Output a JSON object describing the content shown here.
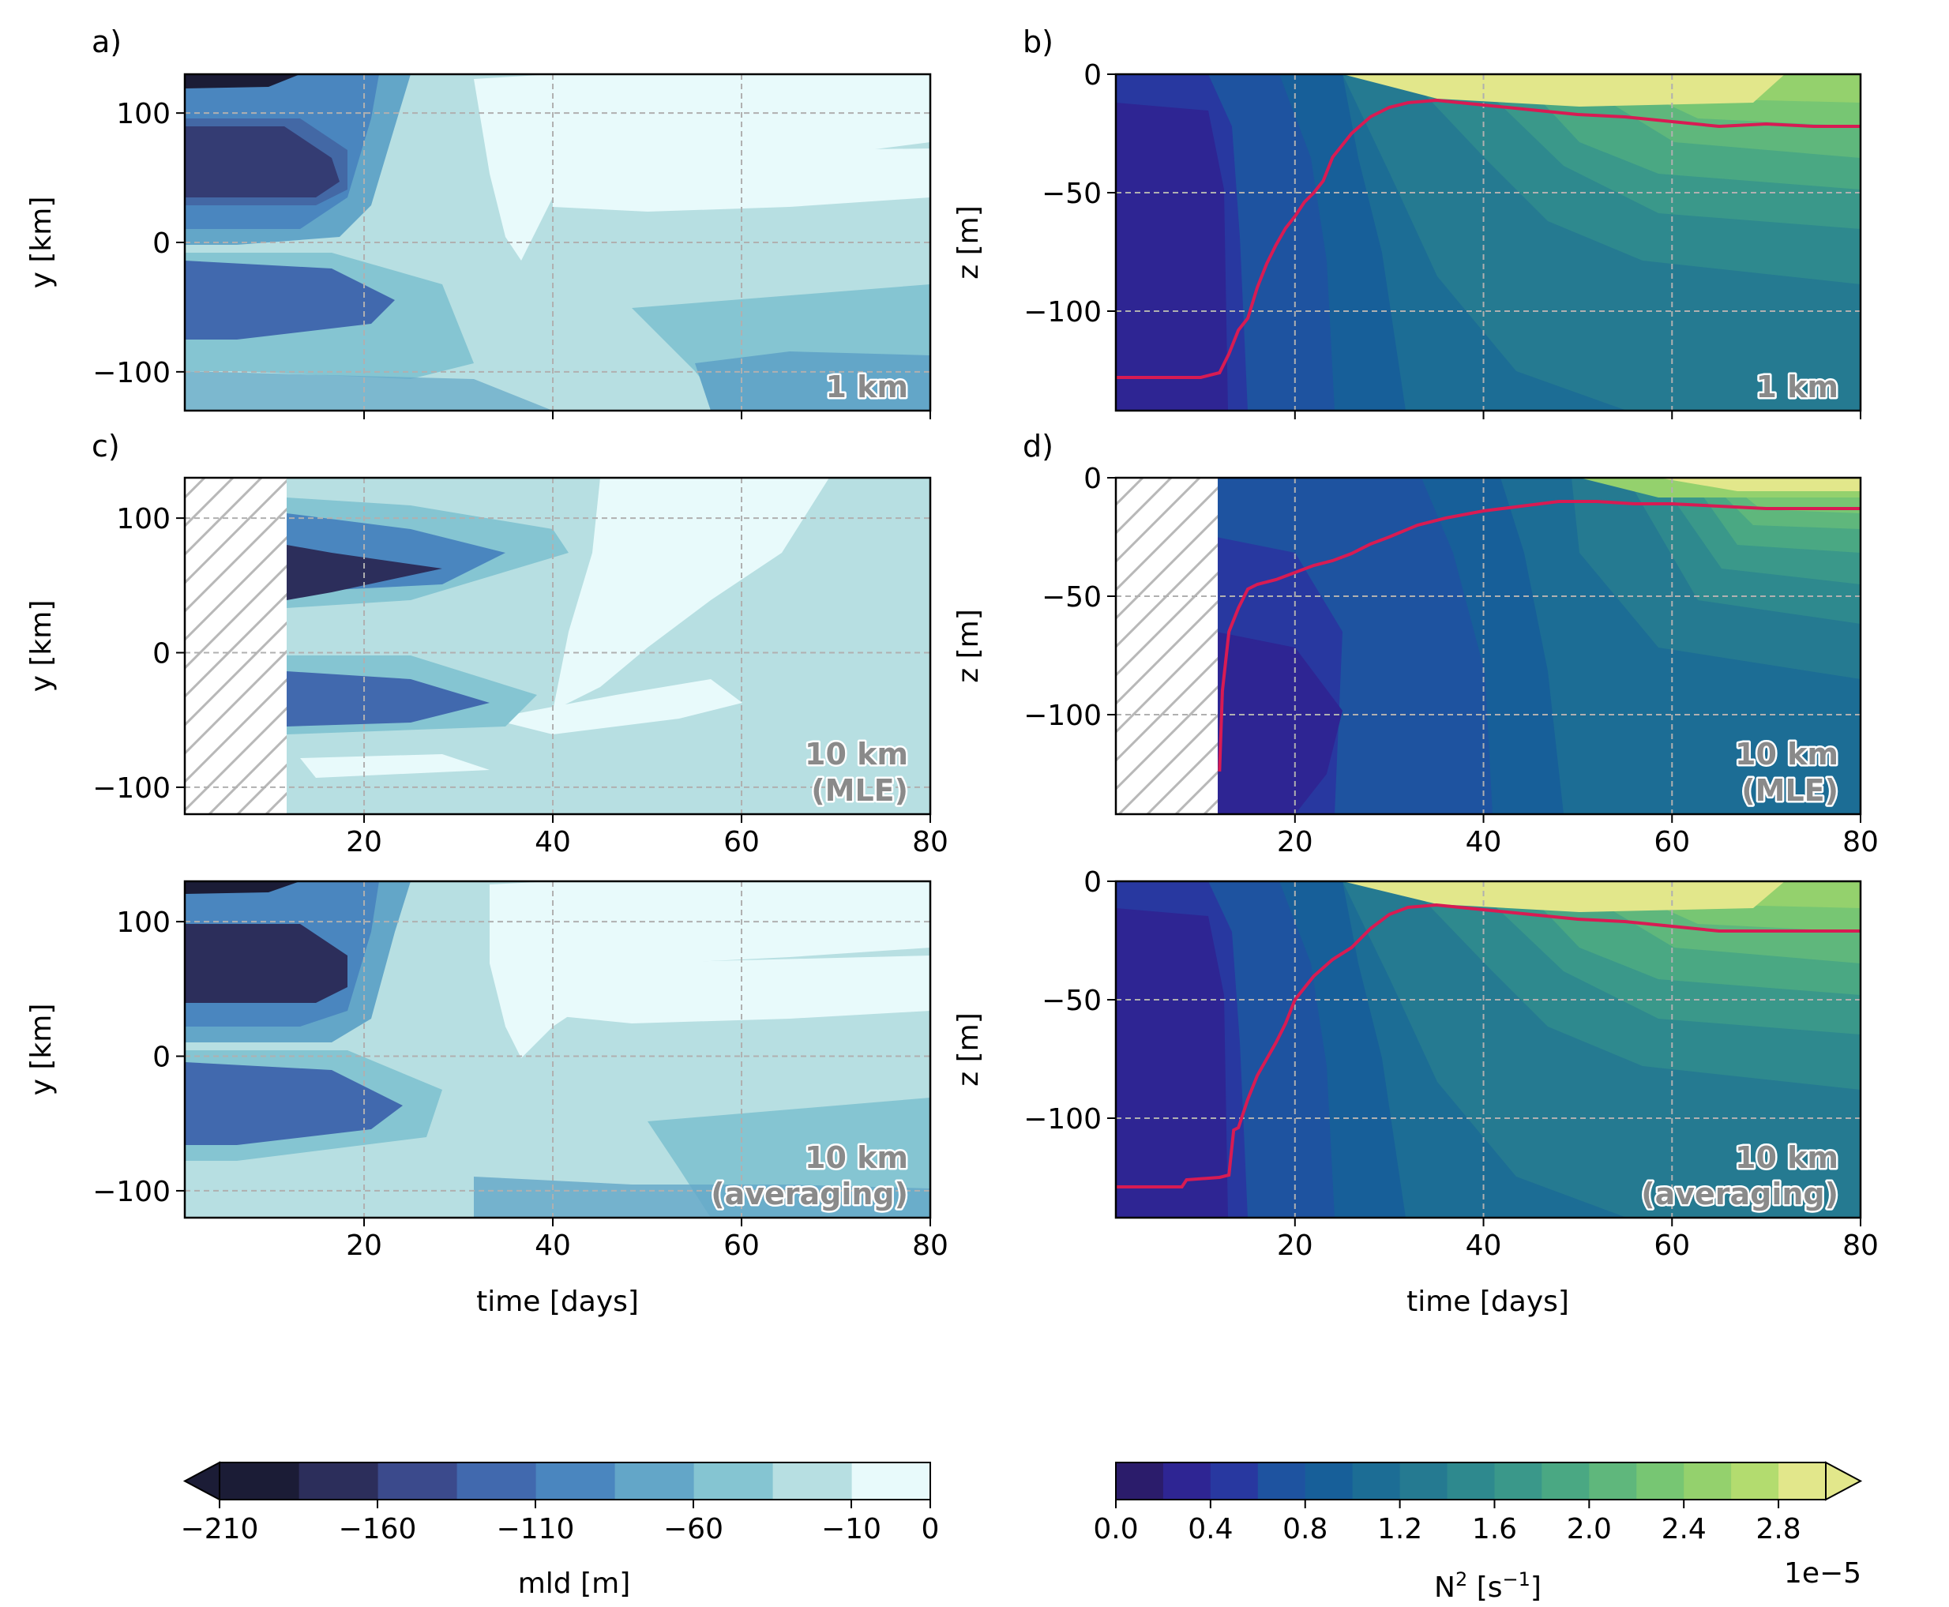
{
  "figure": {
    "title": "",
    "panels_left": [
      {
        "letter": "a)",
        "label": "1 km",
        "ylabel": "y [km]"
      },
      {
        "letter": "c)",
        "label": "10 km\n(MLE)",
        "ylabel": "y [km]"
      },
      {
        "letter": "",
        "label": "10 km\n(averaging)",
        "ylabel": "y [km]"
      }
    ],
    "panels_right": [
      {
        "letter": "b)",
        "label": "1 km",
        "ylabel": "z [m]"
      },
      {
        "letter": "d)",
        "label": "10 km\n(MLE)",
        "ylabel": "z [m]"
      },
      {
        "letter": "",
        "label": "10 km\n(averaging)",
        "ylabel": "z [m]"
      }
    ],
    "xlabel": "time [days]",
    "colorbar_left": {
      "label": "mld [m]",
      "ticks": [
        "−210",
        "−160",
        "−110",
        "−60",
        "−10",
        "0"
      ]
    },
    "colorbar_right": {
      "label_main": "N",
      "label_sup": "2",
      "label_units": " [s",
      "label_unit_sup": "−1",
      "label_end": "]",
      "ticks": [
        "0.0",
        "0.4",
        "0.8",
        "1.2",
        "1.6",
        "2.0",
        "2.4",
        "2.8"
      ],
      "offset": "1e−5"
    }
  },
  "colors": {
    "mld_levels": [
      "#1b1c36",
      "#2c2e5b",
      "#3b4a8c",
      "#4169ae",
      "#4a86bf",
      "#63a6c8",
      "#85c5d2",
      "#b7dfe2",
      "#e8fafb"
    ],
    "n2_levels": [
      "#2b1c6b",
      "#2e2593",
      "#2838a0",
      "#1e53a0",
      "#175f99",
      "#1c6d95",
      "#257a91",
      "#2e898e",
      "#3a988a",
      "#4aa883",
      "#5fb77c",
      "#77c673",
      "#94d16d",
      "#b3dc6f",
      "#e2e78b"
    ],
    "mld_line": "#d81b53",
    "grid": "#b0b0b0",
    "hatch": "#b8b8b8"
  },
  "chart_data": [
    {
      "type": "heatmap",
      "panel": "a",
      "title": "",
      "xlabel": "",
      "ylabel": "y [km]",
      "xlim": [
        1,
        80
      ],
      "ylim": [
        -130,
        130
      ],
      "xticks": [
        20,
        40,
        60,
        80
      ],
      "yticks": [
        -100,
        0,
        100
      ],
      "grid": true,
      "annotation": "1 km",
      "variable": "mld [m]"
    },
    {
      "type": "heatmap",
      "panel": "b",
      "title": "",
      "xlabel": "",
      "ylabel": "z [m]",
      "xlim": [
        1,
        80
      ],
      "ylim": [
        -142,
        0
      ],
      "xticks": [
        20,
        40,
        60,
        80
      ],
      "yticks": [
        -100,
        -50,
        0
      ],
      "grid": true,
      "annotation": "1 km",
      "variable": "N2 [s-1]",
      "series": [
        {
          "values": [
            [
              1,
              -128
            ],
            [
              5,
              -128
            ],
            [
              10,
              -128
            ],
            [
              12,
              -126
            ],
            [
              13,
              -118
            ],
            [
              14,
              -108
            ],
            [
              15,
              -103
            ],
            [
              16,
              -90
            ],
            [
              17,
              -80
            ],
            [
              18,
              -72
            ],
            [
              19,
              -65
            ],
            [
              20,
              -60
            ],
            [
              21,
              -54
            ],
            [
              22,
              -50
            ],
            [
              23,
              -45
            ],
            [
              24,
              -35
            ],
            [
              25,
              -30
            ],
            [
              26,
              -25
            ],
            [
              28,
              -18
            ],
            [
              30,
              -14
            ],
            [
              32,
              -12
            ],
            [
              35,
              -11
            ],
            [
              40,
              -13
            ],
            [
              45,
              -15
            ],
            [
              50,
              -17
            ],
            [
              55,
              -18
            ],
            [
              60,
              -20
            ],
            [
              65,
              -22
            ],
            [
              70,
              -21
            ],
            [
              75,
              -22
            ],
            [
              80,
              -22
            ]
          ]
        }
      ]
    },
    {
      "type": "heatmap",
      "panel": "c",
      "title": "",
      "xlabel": "",
      "ylabel": "y [km]",
      "xlim": [
        1,
        80
      ],
      "ylim": [
        -120,
        130
      ],
      "xticks": [
        20,
        40,
        60,
        80
      ],
      "yticks": [
        -100,
        0,
        100
      ],
      "grid": true,
      "annotation": "10 km\n(MLE)",
      "variable": "mld [m]"
    },
    {
      "type": "heatmap",
      "panel": "d",
      "title": "",
      "xlabel": "",
      "ylabel": "z [m]",
      "xlim": [
        1,
        80
      ],
      "ylim": [
        -142,
        0
      ],
      "xticks": [
        20,
        40,
        60,
        80
      ],
      "yticks": [
        -100,
        -50,
        0
      ],
      "grid": true,
      "annotation": "10 km\n(MLE)",
      "variable": "N2 [s-1]",
      "series": [
        {
          "values": [
            [
              12,
              -124
            ],
            [
              12.3,
              -90
            ],
            [
              13,
              -65
            ],
            [
              14,
              -55
            ],
            [
              15,
              -47
            ],
            [
              16,
              -45
            ],
            [
              18,
              -43
            ],
            [
              20,
              -40
            ],
            [
              22,
              -37
            ],
            [
              24,
              -35
            ],
            [
              26,
              -32
            ],
            [
              28,
              -28
            ],
            [
              30,
              -25
            ],
            [
              33,
              -20
            ],
            [
              36,
              -17
            ],
            [
              40,
              -14
            ],
            [
              44,
              -12
            ],
            [
              48,
              -10
            ],
            [
              52,
              -10
            ],
            [
              56,
              -11
            ],
            [
              60,
              -11
            ],
            [
              65,
              -12
            ],
            [
              70,
              -13
            ],
            [
              75,
              -13
            ],
            [
              80,
              -13
            ]
          ]
        }
      ]
    },
    {
      "type": "heatmap",
      "panel": "e",
      "title": "",
      "xlabel": "time [days]",
      "ylabel": "y [km]",
      "xlim": [
        1,
        80
      ],
      "ylim": [
        -120,
        130
      ],
      "xticks": [
        20,
        40,
        60,
        80
      ],
      "yticks": [
        -100,
        0,
        100
      ],
      "grid": true,
      "annotation": "10 km\n(averaging)",
      "variable": "mld [m]"
    },
    {
      "type": "heatmap",
      "panel": "f",
      "title": "",
      "xlabel": "time [days]",
      "ylabel": "z [m]",
      "xlim": [
        1,
        80
      ],
      "ylim": [
        -142,
        0
      ],
      "xticks": [
        20,
        40,
        60,
        80
      ],
      "yticks": [
        -100,
        -50,
        0
      ],
      "grid": true,
      "annotation": "10 km\n(averaging)",
      "variable": "N2 [s-1]",
      "series": [
        {
          "values": [
            [
              1,
              -129
            ],
            [
              8,
              -129
            ],
            [
              8.5,
              -126
            ],
            [
              12,
              -125
            ],
            [
              13,
              -124
            ],
            [
              13.5,
              -105
            ],
            [
              14,
              -104
            ],
            [
              15,
              -92
            ],
            [
              16,
              -82
            ],
            [
              17,
              -75
            ],
            [
              18,
              -68
            ],
            [
              19,
              -60
            ],
            [
              20,
              -50
            ],
            [
              21,
              -45
            ],
            [
              22,
              -40
            ],
            [
              24,
              -33
            ],
            [
              26,
              -28
            ],
            [
              28,
              -20
            ],
            [
              30,
              -14
            ],
            [
              32,
              -11
            ],
            [
              35,
              -10
            ],
            [
              40,
              -12
            ],
            [
              45,
              -14
            ],
            [
              50,
              -16
            ],
            [
              55,
              -17
            ],
            [
              60,
              -19
            ],
            [
              65,
              -21
            ],
            [
              70,
              -21
            ],
            [
              75,
              -21
            ],
            [
              80,
              -21
            ]
          ]
        }
      ]
    },
    {
      "type": "heatmap",
      "panel": "colorbar-mld",
      "variable": "mld [m]",
      "ticks": [
        -210,
        -160,
        -110,
        -60,
        -10,
        0
      ],
      "extend": "min",
      "levels": [
        -210,
        -185,
        -160,
        -135,
        -110,
        -85,
        -60,
        -35,
        -10,
        0
      ]
    },
    {
      "type": "heatmap",
      "panel": "colorbar-n2",
      "variable": "N2 [s-1]",
      "ticks": [
        0.0,
        0.4,
        0.8,
        1.2,
        1.6,
        2.0,
        2.4,
        2.8
      ],
      "scale": "1e-5",
      "extend": "max",
      "levels": [
        0.0,
        0.2,
        0.4,
        0.6,
        0.8,
        1.0,
        1.2,
        1.4,
        1.6,
        1.8,
        2.0,
        2.2,
        2.4,
        2.6,
        2.8,
        3.0
      ]
    }
  ]
}
